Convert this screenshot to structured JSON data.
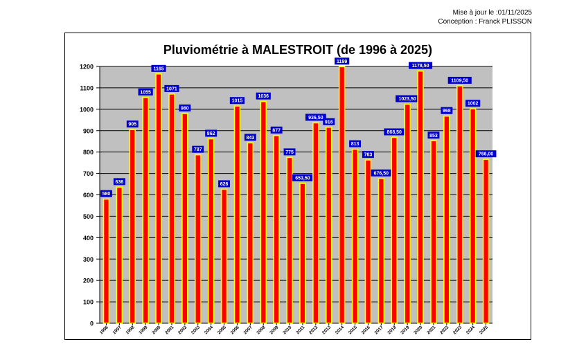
{
  "header": {
    "update_line": "Mise à jour le :01/11/2025",
    "author_line": "Conception : Franck PLISSON"
  },
  "chart_data": {
    "type": "bar",
    "title": "Pluviométrie à MALESTROIT (de 1996 à 2025)",
    "xlabel": "",
    "ylabel": "",
    "ylim": [
      0,
      1200
    ],
    "y_ticks": [
      0,
      100,
      200,
      300,
      400,
      500,
      600,
      700,
      800,
      900,
      1000,
      1100,
      1200
    ],
    "grid": true,
    "colors": {
      "bar_fill": "#ff0000",
      "bar_border": "#ffff00",
      "plot_bg": "#c0c0c0",
      "label_bg": "#0000cc",
      "label_text": "#ffffff"
    },
    "categories": [
      "1996",
      "1997",
      "1998",
      "1999",
      "2000",
      "2001",
      "2002",
      "2003",
      "2004",
      "2005",
      "2006",
      "2007",
      "2008",
      "2009",
      "2010",
      "2011",
      "2012",
      "2013",
      "2014",
      "2015",
      "2016",
      "2017",
      "2018",
      "2019",
      "2020",
      "2021",
      "2022",
      "2023",
      "2024",
      "2025"
    ],
    "values": [
      580,
      636,
      905,
      1055,
      1165,
      1071,
      980,
      787,
      862,
      626,
      1015,
      843,
      1036,
      877,
      775,
      653.5,
      936.5,
      916,
      1199,
      813,
      763,
      676.5,
      868.5,
      1023.5,
      1178.5,
      853,
      968,
      1109.5,
      1002,
      766
    ],
    "data_labels": [
      "580",
      "636",
      "905",
      "1055",
      "1165",
      "1071",
      "980",
      "787",
      "862",
      "626",
      "1015",
      "843",
      "1036",
      "877",
      "775",
      "653,50",
      "936,50",
      "916",
      "1199",
      "813",
      "763",
      "676,50",
      "868,50",
      "1023,50",
      "1178,50",
      "853",
      "968",
      "1109,50",
      "1002",
      "766,00"
    ]
  }
}
